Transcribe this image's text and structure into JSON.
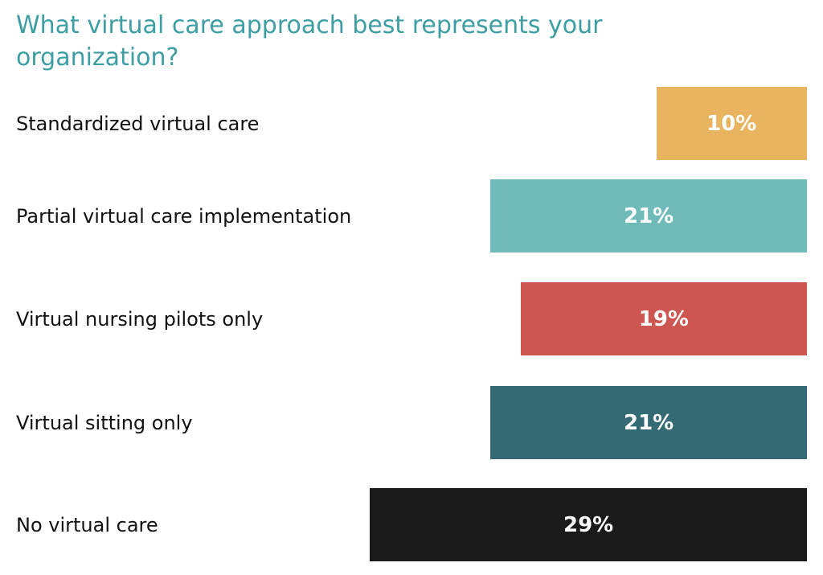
{
  "chart_data": {
    "type": "bar",
    "orientation": "horizontal",
    "title": "What virtual care approach best represents your organization?",
    "categories": [
      "Standardized virtual care",
      "Partial virtual care implementation",
      "Virtual nursing pilots only",
      "Virtual sitting only",
      "No virtual care"
    ],
    "values": [
      10,
      21,
      19,
      21,
      29
    ],
    "value_labels": [
      "10%",
      "21%",
      "19%",
      "21%",
      "29%"
    ],
    "colors": [
      "#e9b45f",
      "#6fbbba",
      "#cd5650",
      "#346a73",
      "#1a1a1a"
    ],
    "unit": "%",
    "grid": false,
    "legend": "none"
  }
}
